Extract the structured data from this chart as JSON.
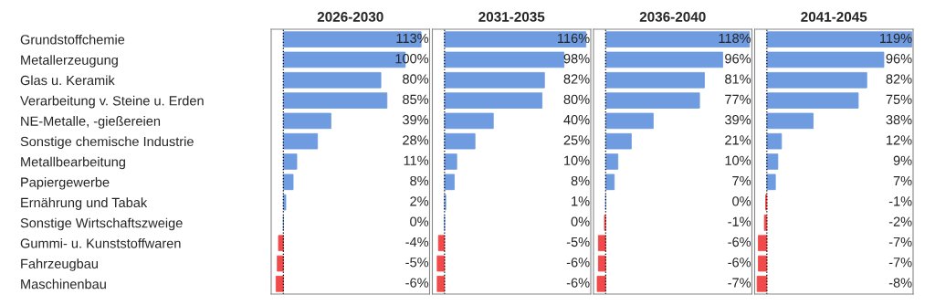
{
  "chart_data": [
    {
      "type": "bar",
      "orientation": "horizontal",
      "title": "2026-2030",
      "xlim": [
        -10,
        120
      ],
      "categories": [
        "Grundstoffchemie",
        "Metallerzeugung",
        "Glas u. Keramik",
        "Verarbeitung v. Steine u. Erden",
        "NE-Metalle, -gießereien",
        "Sonstige chemische Industrie",
        "Metallbearbeitung",
        "Papiergewerbe",
        "Ernährung und Tabak",
        "Sonstige Wirtschaftszweige",
        "Gummi- u. Kunststoffwaren",
        "Fahrzeugbau",
        "Maschinenbau"
      ],
      "values": [
        113,
        100,
        80,
        85,
        39,
        28,
        11,
        8,
        2,
        0,
        -4,
        -5,
        -6
      ],
      "value_labels": [
        "113%",
        "100%",
        "80%",
        "85%",
        "39%",
        "28%",
        "11%",
        "8%",
        "2%",
        "0%",
        "-4%",
        "-5%",
        "-6%"
      ],
      "colors": [
        "#6f9be0",
        "#6f9be0",
        "#6f9be0",
        "#6f9be0",
        "#6f9be0",
        "#6f9be0",
        "#6f9be0",
        "#6f9be0",
        "#6f9be0",
        "#6f9be0",
        "#f04a4a",
        "#f04a4a",
        "#f04a4a"
      ],
      "ref_lines": [
        {
          "axis": "x",
          "value": 0,
          "color": "#000000",
          "line_style": "dotted"
        }
      ]
    },
    {
      "type": "bar",
      "orientation": "horizontal",
      "title": "2031-2035",
      "xlim": [
        -10,
        120
      ],
      "categories": [
        null,
        null,
        null,
        null,
        null,
        null,
        null,
        null,
        null,
        null,
        null,
        null,
        null
      ],
      "values": [
        116,
        98,
        82,
        80,
        40,
        25,
        10,
        8,
        1,
        0,
        -5,
        -6,
        -6
      ],
      "value_labels": [
        "116%",
        "98%",
        "82%",
        "80%",
        "40%",
        "25%",
        "10%",
        "8%",
        "1%",
        "0%",
        "-5%",
        "-6%",
        "-6%"
      ],
      "colors": [
        "#6f9be0",
        "#6f9be0",
        "#6f9be0",
        "#6f9be0",
        "#6f9be0",
        "#6f9be0",
        "#6f9be0",
        "#6f9be0",
        "#6f9be0",
        "#6f9be0",
        "#f04a4a",
        "#f04a4a",
        "#f04a4a"
      ],
      "ref_lines": [
        {
          "axis": "x",
          "value": 0,
          "color": "#000000",
          "line_style": "dotted"
        }
      ]
    },
    {
      "type": "bar",
      "orientation": "horizontal",
      "title": "2036-2040",
      "xlim": [
        -10,
        120
      ],
      "categories": [
        null,
        null,
        null,
        null,
        null,
        null,
        null,
        null,
        null,
        null,
        null,
        null,
        null
      ],
      "values": [
        118,
        96,
        81,
        77,
        39,
        21,
        10,
        7,
        0,
        -1,
        -6,
        -6,
        -7
      ],
      "value_labels": [
        "118%",
        "96%",
        "81%",
        "77%",
        "39%",
        "21%",
        "10%",
        "7%",
        "0%",
        "-1%",
        "-6%",
        "-6%",
        "-7%"
      ],
      "colors": [
        "#6f9be0",
        "#6f9be0",
        "#6f9be0",
        "#6f9be0",
        "#6f9be0",
        "#6f9be0",
        "#6f9be0",
        "#6f9be0",
        "#6f9be0",
        "#f04a4a",
        "#f04a4a",
        "#f04a4a",
        "#f04a4a"
      ],
      "ref_lines": [
        {
          "axis": "x",
          "value": 0,
          "color": "#000000",
          "line_style": "dotted"
        }
      ]
    },
    {
      "type": "bar",
      "orientation": "horizontal",
      "title": "2041-2045",
      "xlim": [
        -10,
        120
      ],
      "categories": [
        null,
        null,
        null,
        null,
        null,
        null,
        null,
        null,
        null,
        null,
        null,
        null,
        null
      ],
      "values": [
        119,
        96,
        82,
        75,
        38,
        12,
        9,
        7,
        -1,
        -2,
        -7,
        -7,
        -8
      ],
      "value_labels": [
        "119%",
        "96%",
        "82%",
        "75%",
        "38%",
        "12%",
        "9%",
        "7%",
        "-1%",
        "-2%",
        "-7%",
        "-7%",
        "-8%"
      ],
      "colors": [
        "#6f9be0",
        "#6f9be0",
        "#6f9be0",
        "#6f9be0",
        "#6f9be0",
        "#6f9be0",
        "#6f9be0",
        "#6f9be0",
        "#f04a4a",
        "#f04a4a",
        "#f04a4a",
        "#f04a4a",
        "#f04a4a"
      ],
      "ref_lines": [
        {
          "axis": "x",
          "value": 0,
          "color": "#000000",
          "line_style": "dotted"
        }
      ]
    }
  ]
}
